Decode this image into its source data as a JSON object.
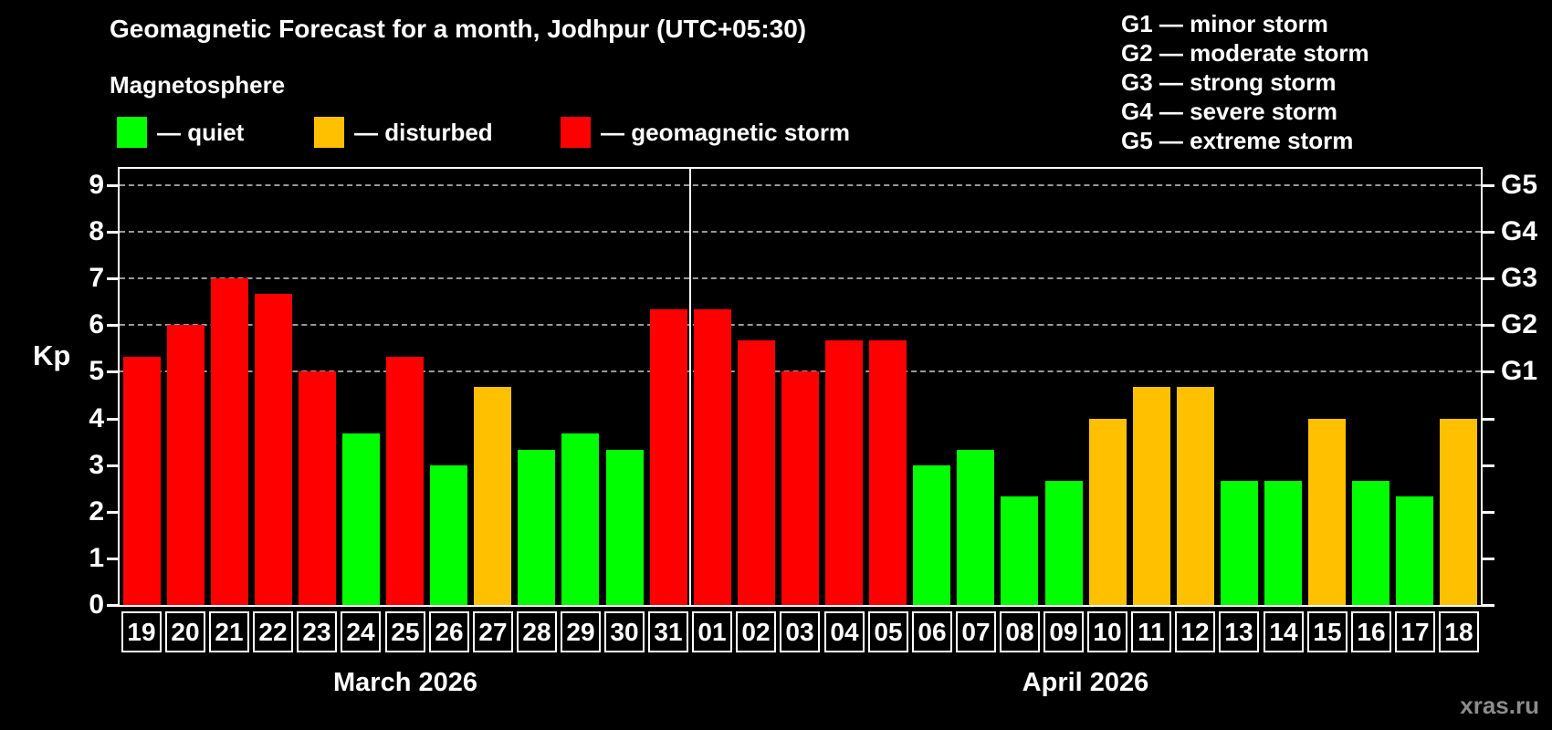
{
  "header": {
    "title": "Geomagnetic Forecast for a month, Jodhpur (UTC+05:30)",
    "subtitle": "Magnetosphere"
  },
  "legend": {
    "items": [
      {
        "key": "quiet",
        "label": "— quiet",
        "color": "#00FF00"
      },
      {
        "key": "disturbed",
        "label": "— disturbed",
        "color": "#FFC000"
      },
      {
        "key": "storm",
        "label": "— geomagnetic storm",
        "color": "#FF0000"
      }
    ]
  },
  "g_scale_legend": {
    "lines": [
      "G1 — minor storm",
      "G2 — moderate storm",
      "G3 — strong storm",
      "G4 — severe storm",
      "G5 — extreme storm"
    ]
  },
  "watermark": "xras.ru",
  "chart_data": {
    "type": "bar",
    "title": "Geomagnetic Forecast for a month, Jodhpur (UTC+05:30)",
    "xlabel": "",
    "ylabel": "Kp",
    "ylim": [
      0,
      9.35
    ],
    "y_ticks": [
      0,
      1,
      2,
      3,
      4,
      5,
      6,
      7,
      8,
      9
    ],
    "gridlines_kp": [
      5,
      6,
      7,
      8,
      9
    ],
    "grid": true,
    "right_axis_labels": [
      {
        "label": "G1",
        "kp": 5
      },
      {
        "label": "G2",
        "kp": 6
      },
      {
        "label": "G3",
        "kp": 7
      },
      {
        "label": "G4",
        "kp": 8
      },
      {
        "label": "G5",
        "kp": 9
      }
    ],
    "status_colors": {
      "quiet": "#00FF00",
      "disturbed": "#FFC000",
      "storm": "#FF0000"
    },
    "categories": [
      "19",
      "20",
      "21",
      "22",
      "23",
      "24",
      "25",
      "26",
      "27",
      "28",
      "29",
      "30",
      "31",
      "01",
      "02",
      "03",
      "04",
      "05",
      "06",
      "07",
      "08",
      "09",
      "10",
      "11",
      "12",
      "13",
      "14",
      "15",
      "16",
      "17",
      "18"
    ],
    "values": [
      5.33,
      6.0,
      7.0,
      6.67,
      5.0,
      3.67,
      5.33,
      3.0,
      4.67,
      3.33,
      3.67,
      3.33,
      6.33,
      6.33,
      5.67,
      5.0,
      5.67,
      5.67,
      3.0,
      3.33,
      2.33,
      2.67,
      4.0,
      4.67,
      4.67,
      2.67,
      2.67,
      4.0,
      2.67,
      2.33,
      4.0
    ],
    "statuses": [
      "storm",
      "storm",
      "storm",
      "storm",
      "storm",
      "quiet",
      "storm",
      "quiet",
      "disturbed",
      "quiet",
      "quiet",
      "quiet",
      "storm",
      "storm",
      "storm",
      "storm",
      "storm",
      "storm",
      "quiet",
      "quiet",
      "quiet",
      "quiet",
      "disturbed",
      "disturbed",
      "disturbed",
      "quiet",
      "quiet",
      "disturbed",
      "quiet",
      "quiet",
      "disturbed"
    ],
    "month_groups": [
      {
        "label": "March 2026",
        "start": 0,
        "count": 13
      },
      {
        "label": "April 2026",
        "start": 13,
        "count": 18
      }
    ]
  }
}
